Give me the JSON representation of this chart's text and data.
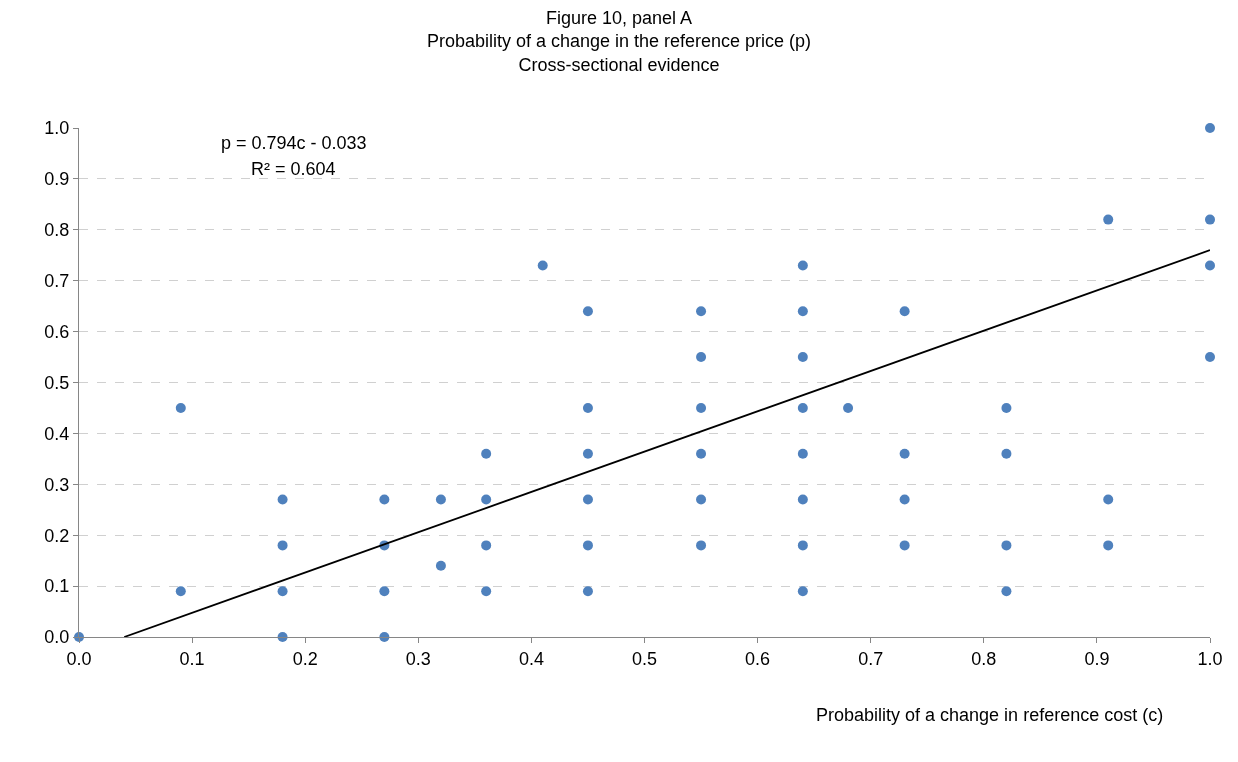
{
  "chart_data": {
    "type": "scatter",
    "title": "Figure 10, panel A\nProbability of a change in the reference price (p)\nCross-sectional evidence",
    "xlabel": "Probability of a change in reference cost (c)",
    "annotations": [
      "p = 0.794c - 0.033",
      "R² = 0.604"
    ],
    "series": [
      {
        "color": "#4f81bd",
        "marker": "circle",
        "x": [
          0,
          0.09,
          0.09,
          0.18,
          0.18,
          0.18,
          0.18,
          0.27,
          0.27,
          0.27,
          0.27,
          0.32,
          0.32,
          0.36,
          0.36,
          0.36,
          0.36,
          0.41,
          0.45,
          0.45,
          0.45,
          0.45,
          0.45,
          0.45,
          0.55,
          0.55,
          0.55,
          0.55,
          0.55,
          0.55,
          0.64,
          0.64,
          0.64,
          0.64,
          0.64,
          0.64,
          0.64,
          0.64,
          0.68,
          0.73,
          0.73,
          0.73,
          0.73,
          0.82,
          0.82,
          0.82,
          0.82,
          0.91,
          0.91,
          0.91,
          1.0,
          1.0,
          1.0,
          1.0
        ],
        "values": [
          0,
          0.09,
          0.45,
          0.27,
          0.18,
          0.09,
          0,
          0.27,
          0.18,
          0.09,
          0,
          0.27,
          0.14,
          0.36,
          0.27,
          0.18,
          0.09,
          0.73,
          0.64,
          0.45,
          0.36,
          0.27,
          0.18,
          0.09,
          0.64,
          0.55,
          0.45,
          0.36,
          0.27,
          0.18,
          0.73,
          0.64,
          0.55,
          0.45,
          0.36,
          0.27,
          0.18,
          0.09,
          0.45,
          0.64,
          0.36,
          0.27,
          0.18,
          0.45,
          0.36,
          0.18,
          0.09,
          0.82,
          0.27,
          0.18,
          1.0,
          0.82,
          0.73,
          0.55
        ]
      },
      {
        "type": "line",
        "color": "#000000",
        "line_style": "solid",
        "x": [
          0.04,
          1.0
        ],
        "values": [
          0,
          0.76
        ]
      }
    ],
    "xlim": [
      0,
      1
    ],
    "ylim": [
      0,
      1
    ],
    "xticks": [
      {
        "value": 0,
        "label": "0.0"
      },
      0.1,
      0.2,
      0.3,
      0.4,
      0.5,
      0.6,
      0.7,
      0.8,
      0.9,
      {
        "value": 1,
        "label": "1.0"
      }
    ],
    "yticks": [
      {
        "value": 0,
        "label": "0.0"
      },
      0.1,
      0.2,
      0.3,
      0.4,
      0.5,
      0.6,
      0.7,
      0.8,
      0.9,
      {
        "value": 1,
        "label": "1.0"
      }
    ],
    "grid": "y"
  }
}
